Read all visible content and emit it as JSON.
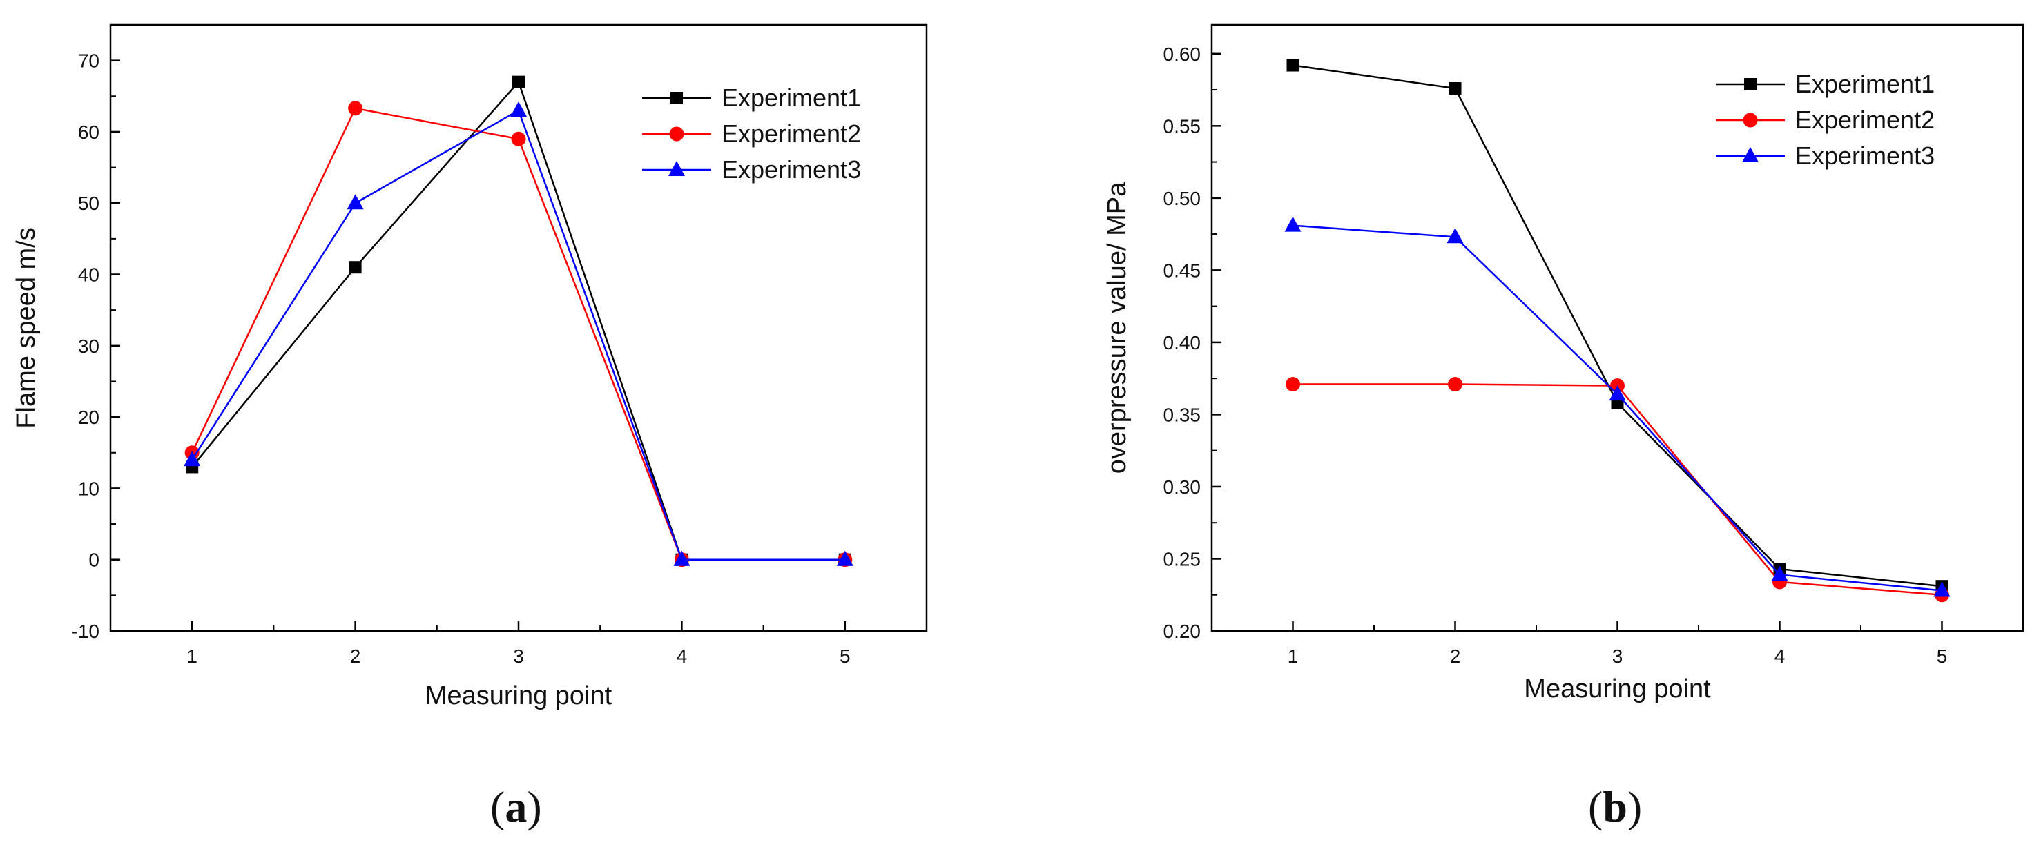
{
  "chart_data": [
    {
      "type": "line",
      "panel": "(a)",
      "panel_letter": "a",
      "xlabel": "Measuring point",
      "ylabel": "Flame speed m/s",
      "x": [
        1,
        2,
        3,
        4,
        5
      ],
      "xticks": [
        "1",
        "2",
        "3",
        "4",
        "5"
      ],
      "xlim": [
        0.5,
        5.5
      ],
      "ylim": [
        -10,
        75
      ],
      "yticks": [
        "-10",
        "0",
        "10",
        "20",
        "30",
        "40",
        "50",
        "60",
        "70"
      ],
      "legend_position": "top-right",
      "series": [
        {
          "name": "Experiment1",
          "color": "#000000",
          "marker": "square",
          "values": [
            13,
            41,
            67,
            0,
            0
          ]
        },
        {
          "name": "Experiment2",
          "color": "#ff0000",
          "marker": "circle",
          "values": [
            15,
            63.3,
            59,
            0,
            0
          ]
        },
        {
          "name": "Experiment3",
          "color": "#0000ff",
          "marker": "triangle",
          "values": [
            14,
            50,
            63,
            0,
            0
          ]
        }
      ]
    },
    {
      "type": "line",
      "panel": "(b)",
      "panel_letter": "b",
      "xlabel": "Measuring point",
      "ylabel": "overpressure value/ MPa",
      "x": [
        1,
        2,
        3,
        4,
        5
      ],
      "xticks": [
        "1",
        "2",
        "3",
        "4",
        "5"
      ],
      "xlim": [
        0.5,
        5.5
      ],
      "ylim": [
        0.2,
        0.62
      ],
      "yticks": [
        "0.20",
        "0.25",
        "0.30",
        "0.35",
        "0.40",
        "0.45",
        "0.50",
        "0.55",
        "0.60"
      ],
      "legend_position": "top-right",
      "series": [
        {
          "name": "Experiment1",
          "color": "#000000",
          "marker": "square",
          "values": [
            0.592,
            0.576,
            0.358,
            0.243,
            0.231
          ]
        },
        {
          "name": "Experiment2",
          "color": "#ff0000",
          "marker": "circle",
          "values": [
            0.371,
            0.371,
            0.37,
            0.234,
            0.225
          ]
        },
        {
          "name": "Experiment3",
          "color": "#0000ff",
          "marker": "triangle",
          "values": [
            0.481,
            0.473,
            0.364,
            0.239,
            0.228
          ]
        }
      ]
    }
  ]
}
